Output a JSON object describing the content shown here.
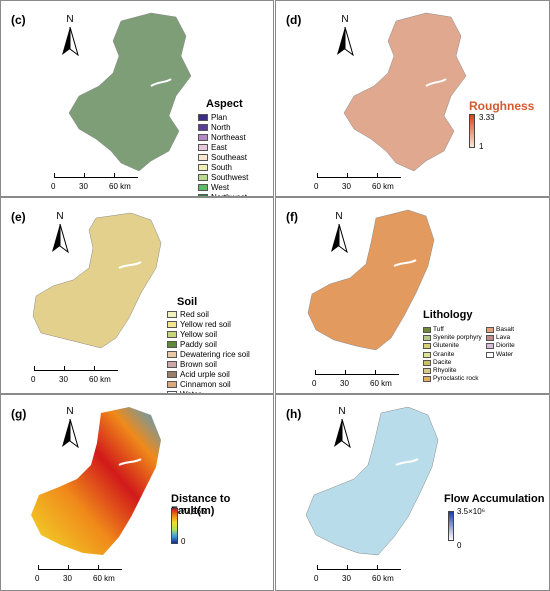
{
  "panels": {
    "c": {
      "label": "(c)",
      "north": "N",
      "legend_title": "Aspect",
      "legend": [
        {
          "text": "Plan",
          "color": "#3b2d87"
        },
        {
          "text": "North",
          "color": "#5a3e9a"
        },
        {
          "text": "Northeast",
          "color": "#b489c4"
        },
        {
          "text": "East",
          "color": "#e9c8de"
        },
        {
          "text": "Southeast",
          "color": "#f6e6d3"
        },
        {
          "text": "South",
          "color": "#f2efb4"
        },
        {
          "text": "Southwest",
          "color": "#b8dc8c"
        },
        {
          "text": "West",
          "color": "#5dbb63"
        },
        {
          "text": "Northwest",
          "color": "#2e8b3e"
        }
      ],
      "map_color": "#7e9e78",
      "scale": [
        "0",
        "30",
        "60 km"
      ]
    },
    "d": {
      "label": "(d)",
      "north": "N",
      "legend_title": "Roughness",
      "max": "3.33",
      "min": "1",
      "colors": [
        "#d9431c",
        "#fbe5d6"
      ],
      "map_color": "#e0a88f",
      "scale": [
        "0",
        "30",
        "60 km"
      ]
    },
    "e": {
      "label": "(e)",
      "north": "N",
      "legend_title": "Soil",
      "legend": [
        {
          "text": "Red soil",
          "color": "#f1f1c0"
        },
        {
          "text": "Yellow red soil",
          "color": "#f2e58f"
        },
        {
          "text": "Yellow soil",
          "color": "#c8d67a"
        },
        {
          "text": "Paddy soil",
          "color": "#5f8a3c"
        },
        {
          "text": "Dewatering rice soil",
          "color": "#e8c9a5"
        },
        {
          "text": "Brown soil",
          "color": "#c9a6a8"
        },
        {
          "text": "Acid urple soil",
          "color": "#9a7f6a"
        },
        {
          "text": "Cinnamon soil",
          "color": "#d8a97d"
        },
        {
          "text": "Water",
          "color": "#ffffff"
        }
      ],
      "map_color": "#e3d08c",
      "scale": [
        "0",
        "30",
        "60 km"
      ]
    },
    "f": {
      "label": "(f)",
      "north": "N",
      "legend_title": "Lithology",
      "legend_col1": [
        {
          "text": "Tuff",
          "color": "#6f8a3b"
        },
        {
          "text": "Syenite porphyry",
          "color": "#b7c98a"
        },
        {
          "text": "Glutenite",
          "color": "#d6d07a"
        },
        {
          "text": "Granite",
          "color": "#e0e39a"
        },
        {
          "text": "Dacite",
          "color": "#c9c06a"
        },
        {
          "text": "Rhyolite",
          "color": "#d8c990"
        },
        {
          "text": "Pyroclastic rock",
          "color": "#e0b06a"
        }
      ],
      "legend_col2": [
        {
          "text": "Basalt",
          "color": "#e3a07a"
        },
        {
          "text": "Lava",
          "color": "#c08a8a"
        },
        {
          "text": "Diorite",
          "color": "#d7bcd8"
        },
        {
          "text": "Water",
          "color": "#ffffff"
        }
      ],
      "map_color": "#e39a5f",
      "scale": [
        "0",
        "30",
        "60 km"
      ]
    },
    "g": {
      "label": "(g)",
      "north": "N",
      "legend_title": "Distance to Fault(m)",
      "max": "77,965",
      "min": "0",
      "colors": [
        "#1e2a8c",
        "#3f9fd8",
        "#b6df5a",
        "#f2dc2a",
        "#f08a1a",
        "#d11a1a"
      ],
      "scale": [
        "0",
        "30",
        "60 km"
      ]
    },
    "h": {
      "label": "(h)",
      "north": "N",
      "legend_title": "Flow Accumulation",
      "max": "3.5×10⁶",
      "min": "0",
      "colors": [
        "#1a3fa8",
        "#ffffff"
      ],
      "map_color": "#b9dcea",
      "scale": [
        "0",
        "30",
        "60 km"
      ]
    }
  }
}
